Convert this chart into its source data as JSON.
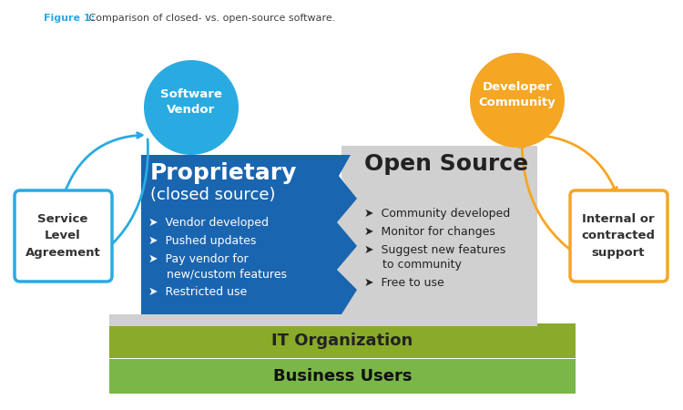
{
  "title_fig1": "Figure 1:",
  "title_rest": " Comparison of closed- vs. open-source software.",
  "title_color": "#29abe2",
  "title_rest_color": "#404040",
  "bg_color": "#ffffff",
  "prop_title1": "Proprietary",
  "prop_title2": "(closed source)",
  "prop_color": "#1a65b0",
  "open_title": "Open Source",
  "open_color": "#d0d0d0",
  "it_label": "IT Organization",
  "it_color": "#8aaa2a",
  "it_text_color": "#222222",
  "biz_label": "Business Users",
  "biz_color": "#7ab648",
  "biz_text_color": "#111111",
  "vendor_label": "Software\nVendor",
  "vendor_circle_color": "#29abe2",
  "vendor_text_color": "#ffffff",
  "dev_label": "Developer\nCommunity",
  "dev_circle_color": "#f5a623",
  "dev_text_color": "#ffffff",
  "sla_label": "Service\nLevel\nAgreement",
  "sla_border_color": "#29abe2",
  "sla_text_color": "#333333",
  "support_label": "Internal or\ncontracted\nsupport",
  "support_border_color": "#f5a623",
  "support_text_color": "#333333",
  "left_arrow_color": "#29abe2",
  "right_arrow_color": "#f5a623"
}
